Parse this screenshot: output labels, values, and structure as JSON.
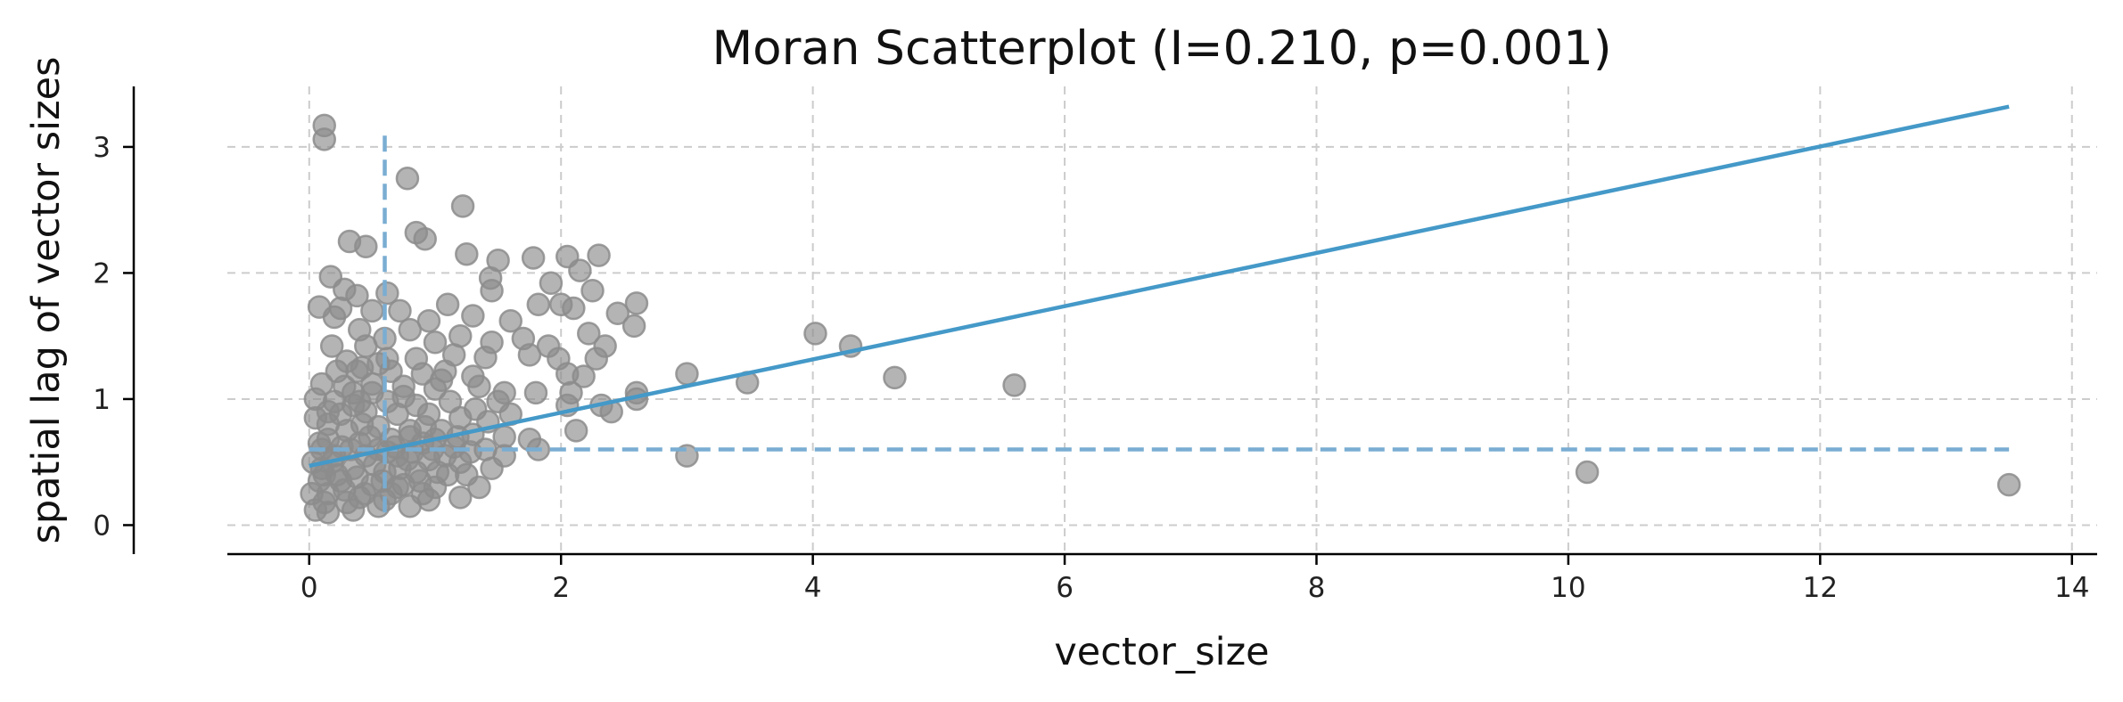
{
  "chart_data": {
    "type": "scatter",
    "title": "Moran Scatterplot (I=0.210, p=0.001)",
    "xlabel": "vector_size",
    "ylabel": "spatial lag of vector sizes",
    "xlim": [
      -0.65,
      14.2
    ],
    "ylim": [
      -0.23,
      3.48
    ],
    "xticks": [
      0,
      2,
      4,
      6,
      8,
      10,
      12,
      14
    ],
    "yticks": [
      0,
      1,
      2,
      3
    ],
    "grid": true,
    "colors": {
      "points": "#8c8c8c",
      "line": "#4499c8",
      "reference": "#7aadd2",
      "grid": "#cccccc",
      "axis": "#000000"
    },
    "regression_line": {
      "x": [
        0,
        13.5
      ],
      "y": [
        0.47,
        3.32
      ]
    },
    "mean_lines": {
      "x_mean": 0.6,
      "y_mean": 0.6,
      "x_span": [
        0,
        13.5
      ],
      "y_span": [
        0.1,
        3.15
      ]
    },
    "points": [
      [
        0.12,
        3.17
      ],
      [
        0.12,
        3.06
      ],
      [
        0.78,
        2.75
      ],
      [
        1.22,
        2.53
      ],
      [
        0.85,
        2.32
      ],
      [
        0.32,
        2.25
      ],
      [
        0.45,
        2.21
      ],
      [
        0.92,
        2.27
      ],
      [
        1.25,
        2.15
      ],
      [
        1.78,
        2.12
      ],
      [
        2.05,
        2.13
      ],
      [
        2.3,
        2.14
      ],
      [
        1.5,
        2.1
      ],
      [
        2.15,
        2.02
      ],
      [
        1.44,
        1.96
      ],
      [
        0.17,
        1.97
      ],
      [
        0.28,
        1.87
      ],
      [
        0.62,
        1.84
      ],
      [
        0.38,
        1.82
      ],
      [
        1.45,
        1.86
      ],
      [
        1.92,
        1.92
      ],
      [
        2.25,
        1.86
      ],
      [
        1.1,
        1.75
      ],
      [
        2.6,
        1.76
      ],
      [
        1.82,
        1.75
      ],
      [
        2.1,
        1.72
      ],
      [
        0.08,
        1.73
      ],
      [
        0.25,
        1.72
      ],
      [
        0.5,
        1.7
      ],
      [
        0.2,
        1.65
      ],
      [
        0.72,
        1.7
      ],
      [
        0.95,
        1.62
      ],
      [
        1.3,
        1.66
      ],
      [
        1.6,
        1.62
      ],
      [
        2.0,
        1.75
      ],
      [
        2.45,
        1.68
      ],
      [
        2.58,
        1.58
      ],
      [
        0.4,
        1.55
      ],
      [
        0.8,
        1.55
      ],
      [
        1.2,
        1.5
      ],
      [
        1.7,
        1.48
      ],
      [
        2.22,
        1.52
      ],
      [
        1.0,
        1.45
      ],
      [
        0.18,
        1.42
      ],
      [
        0.45,
        1.42
      ],
      [
        0.6,
        1.48
      ],
      [
        1.45,
        1.45
      ],
      [
        1.9,
        1.42
      ],
      [
        2.35,
        1.42
      ],
      [
        0.3,
        1.3
      ],
      [
        0.55,
        1.28
      ],
      [
        0.85,
        1.32
      ],
      [
        1.15,
        1.35
      ],
      [
        1.4,
        1.33
      ],
      [
        1.75,
        1.35
      ],
      [
        1.98,
        1.32
      ],
      [
        2.28,
        1.32
      ],
      [
        0.22,
        1.22
      ],
      [
        0.38,
        1.22
      ],
      [
        0.65,
        1.22
      ],
      [
        0.9,
        1.2
      ],
      [
        1.08,
        1.22
      ],
      [
        1.3,
        1.18
      ],
      [
        2.05,
        1.2
      ],
      [
        2.18,
        1.18
      ],
      [
        3.0,
        1.2
      ],
      [
        0.1,
        1.12
      ],
      [
        0.28,
        1.1
      ],
      [
        0.5,
        1.12
      ],
      [
        0.75,
        1.1
      ],
      [
        1.0,
        1.08
      ],
      [
        1.35,
        1.1
      ],
      [
        1.55,
        1.05
      ],
      [
        1.8,
        1.05
      ],
      [
        2.08,
        1.05
      ],
      [
        2.6,
        1.05
      ],
      [
        0.05,
        1.0
      ],
      [
        0.2,
        0.98
      ],
      [
        0.4,
        0.98
      ],
      [
        0.62,
        0.98
      ],
      [
        0.85,
        0.95
      ],
      [
        1.12,
        0.98
      ],
      [
        1.5,
        0.98
      ],
      [
        2.05,
        0.95
      ],
      [
        2.32,
        0.95
      ],
      [
        2.6,
        1.0
      ],
      [
        4.02,
        1.52
      ],
      [
        4.3,
        1.42
      ],
      [
        3.48,
        1.13
      ],
      [
        4.65,
        1.17
      ],
      [
        5.6,
        1.11
      ],
      [
        2.4,
        0.9
      ],
      [
        2.12,
        0.75
      ],
      [
        1.75,
        0.68
      ],
      [
        1.82,
        0.6
      ],
      [
        3.0,
        0.55
      ],
      [
        1.55,
        0.55
      ],
      [
        1.45,
        0.45
      ],
      [
        1.25,
        0.4
      ],
      [
        1.35,
        0.3
      ],
      [
        1.2,
        0.22
      ],
      [
        0.95,
        0.2
      ],
      [
        0.8,
        0.15
      ],
      [
        0.55,
        0.15
      ],
      [
        0.35,
        0.12
      ],
      [
        0.15,
        0.1
      ],
      [
        0.05,
        0.12
      ],
      [
        0.02,
        0.25
      ],
      [
        0.08,
        0.35
      ],
      [
        0.03,
        0.5
      ],
      [
        0.1,
        0.6
      ],
      [
        0.15,
        0.8
      ],
      [
        0.05,
        0.85
      ],
      [
        0.25,
        0.88
      ],
      [
        0.45,
        0.9
      ],
      [
        0.7,
        0.88
      ],
      [
        0.95,
        0.88
      ],
      [
        1.2,
        0.85
      ],
      [
        1.42,
        0.82
      ],
      [
        0.3,
        0.75
      ],
      [
        0.55,
        0.78
      ],
      [
        0.8,
        0.75
      ],
      [
        1.05,
        0.75
      ],
      [
        1.3,
        0.72
      ],
      [
        1.55,
        0.7
      ],
      [
        0.15,
        0.68
      ],
      [
        0.4,
        0.65
      ],
      [
        0.65,
        0.68
      ],
      [
        0.9,
        0.65
      ],
      [
        1.15,
        0.62
      ],
      [
        1.4,
        0.6
      ],
      [
        0.2,
        0.55
      ],
      [
        0.45,
        0.55
      ],
      [
        0.7,
        0.55
      ],
      [
        0.95,
        0.52
      ],
      [
        1.2,
        0.5
      ],
      [
        0.1,
        0.45
      ],
      [
        0.35,
        0.45
      ],
      [
        0.6,
        0.42
      ],
      [
        0.85,
        0.42
      ],
      [
        1.1,
        0.4
      ],
      [
        0.25,
        0.35
      ],
      [
        0.5,
        0.32
      ],
      [
        0.75,
        0.32
      ],
      [
        1.0,
        0.3
      ],
      [
        0.15,
        0.25
      ],
      [
        0.4,
        0.22
      ],
      [
        0.65,
        0.25
      ],
      [
        0.9,
        0.25
      ],
      [
        0.3,
        0.18
      ],
      [
        0.6,
        0.2
      ],
      [
        0.12,
        0.18
      ],
      [
        0.22,
        0.4
      ],
      [
        0.48,
        0.7
      ],
      [
        0.72,
        0.45
      ],
      [
        0.98,
        0.6
      ],
      [
        0.33,
        0.6
      ],
      [
        0.58,
        0.35
      ],
      [
        0.82,
        0.58
      ],
      [
        1.08,
        0.55
      ],
      [
        0.18,
        0.5
      ],
      [
        0.42,
        0.8
      ],
      [
        0.68,
        0.62
      ],
      [
        0.92,
        0.78
      ],
      [
        1.18,
        0.7
      ],
      [
        0.28,
        0.28
      ],
      [
        0.52,
        0.48
      ],
      [
        0.78,
        0.52
      ],
      [
        1.02,
        0.42
      ],
      [
        1.28,
        0.58
      ],
      [
        0.38,
        0.38
      ],
      [
        0.62,
        0.58
      ],
      [
        0.88,
        0.35
      ],
      [
        0.12,
        0.4
      ],
      [
        0.08,
        0.65
      ],
      [
        0.26,
        0.62
      ],
      [
        0.44,
        0.25
      ],
      [
        0.7,
        0.3
      ],
      [
        0.5,
        1.05
      ],
      [
        0.75,
        1.02
      ],
      [
        0.35,
        1.05
      ],
      [
        1.6,
        0.88
      ],
      [
        1.32,
        0.92
      ],
      [
        1.05,
        1.15
      ],
      [
        0.62,
        1.32
      ],
      [
        0.42,
        1.25
      ],
      [
        0.15,
        0.9
      ],
      [
        0.35,
        0.95
      ],
      [
        0.55,
        0.6
      ],
      [
        0.8,
        0.7
      ],
      [
        1.0,
        0.68
      ],
      [
        10.15,
        0.42
      ],
      [
        13.5,
        0.32
      ]
    ]
  }
}
